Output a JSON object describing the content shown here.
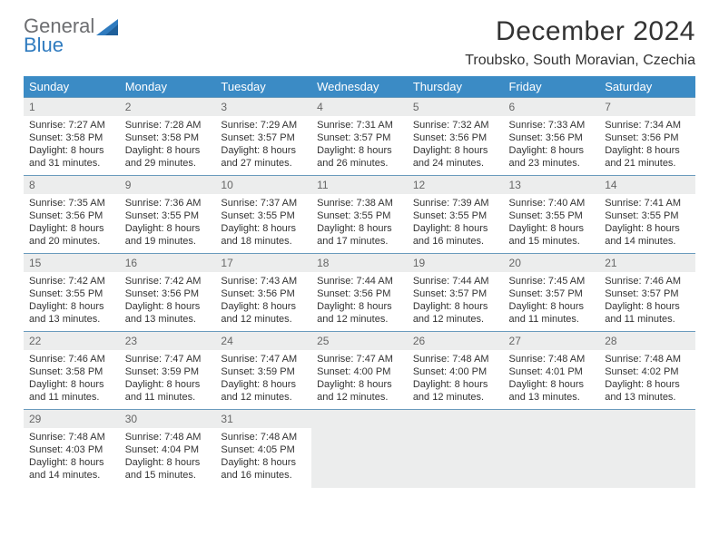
{
  "brand": {
    "part1": "General",
    "part2": "Blue"
  },
  "title": "December 2024",
  "location": "Troubsko, South Moravian, Czechia",
  "colors": {
    "header_bg": "#3b8bc5",
    "header_text": "#ffffff",
    "daynum_bg": "#eceded",
    "rule": "#3b72a5",
    "brand_gray": "#6d6e71",
    "brand_blue": "#2f7bbf"
  },
  "weekdays": [
    "Sunday",
    "Monday",
    "Tuesday",
    "Wednesday",
    "Thursday",
    "Friday",
    "Saturday"
  ],
  "weeks": [
    [
      {
        "n": "1",
        "sr": "7:27 AM",
        "ss": "3:58 PM",
        "dl": "8 hours and 31 minutes."
      },
      {
        "n": "2",
        "sr": "7:28 AM",
        "ss": "3:58 PM",
        "dl": "8 hours and 29 minutes."
      },
      {
        "n": "3",
        "sr": "7:29 AM",
        "ss": "3:57 PM",
        "dl": "8 hours and 27 minutes."
      },
      {
        "n": "4",
        "sr": "7:31 AM",
        "ss": "3:57 PM",
        "dl": "8 hours and 26 minutes."
      },
      {
        "n": "5",
        "sr": "7:32 AM",
        "ss": "3:56 PM",
        "dl": "8 hours and 24 minutes."
      },
      {
        "n": "6",
        "sr": "7:33 AM",
        "ss": "3:56 PM",
        "dl": "8 hours and 23 minutes."
      },
      {
        "n": "7",
        "sr": "7:34 AM",
        "ss": "3:56 PM",
        "dl": "8 hours and 21 minutes."
      }
    ],
    [
      {
        "n": "8",
        "sr": "7:35 AM",
        "ss": "3:56 PM",
        "dl": "8 hours and 20 minutes."
      },
      {
        "n": "9",
        "sr": "7:36 AM",
        "ss": "3:55 PM",
        "dl": "8 hours and 19 minutes."
      },
      {
        "n": "10",
        "sr": "7:37 AM",
        "ss": "3:55 PM",
        "dl": "8 hours and 18 minutes."
      },
      {
        "n": "11",
        "sr": "7:38 AM",
        "ss": "3:55 PM",
        "dl": "8 hours and 17 minutes."
      },
      {
        "n": "12",
        "sr": "7:39 AM",
        "ss": "3:55 PM",
        "dl": "8 hours and 16 minutes."
      },
      {
        "n": "13",
        "sr": "7:40 AM",
        "ss": "3:55 PM",
        "dl": "8 hours and 15 minutes."
      },
      {
        "n": "14",
        "sr": "7:41 AM",
        "ss": "3:55 PM",
        "dl": "8 hours and 14 minutes."
      }
    ],
    [
      {
        "n": "15",
        "sr": "7:42 AM",
        "ss": "3:55 PM",
        "dl": "8 hours and 13 minutes."
      },
      {
        "n": "16",
        "sr": "7:42 AM",
        "ss": "3:56 PM",
        "dl": "8 hours and 13 minutes."
      },
      {
        "n": "17",
        "sr": "7:43 AM",
        "ss": "3:56 PM",
        "dl": "8 hours and 12 minutes."
      },
      {
        "n": "18",
        "sr": "7:44 AM",
        "ss": "3:56 PM",
        "dl": "8 hours and 12 minutes."
      },
      {
        "n": "19",
        "sr": "7:44 AM",
        "ss": "3:57 PM",
        "dl": "8 hours and 12 minutes."
      },
      {
        "n": "20",
        "sr": "7:45 AM",
        "ss": "3:57 PM",
        "dl": "8 hours and 11 minutes."
      },
      {
        "n": "21",
        "sr": "7:46 AM",
        "ss": "3:57 PM",
        "dl": "8 hours and 11 minutes."
      }
    ],
    [
      {
        "n": "22",
        "sr": "7:46 AM",
        "ss": "3:58 PM",
        "dl": "8 hours and 11 minutes."
      },
      {
        "n": "23",
        "sr": "7:47 AM",
        "ss": "3:59 PM",
        "dl": "8 hours and 11 minutes."
      },
      {
        "n": "24",
        "sr": "7:47 AM",
        "ss": "3:59 PM",
        "dl": "8 hours and 12 minutes."
      },
      {
        "n": "25",
        "sr": "7:47 AM",
        "ss": "4:00 PM",
        "dl": "8 hours and 12 minutes."
      },
      {
        "n": "26",
        "sr": "7:48 AM",
        "ss": "4:00 PM",
        "dl": "8 hours and 12 minutes."
      },
      {
        "n": "27",
        "sr": "7:48 AM",
        "ss": "4:01 PM",
        "dl": "8 hours and 13 minutes."
      },
      {
        "n": "28",
        "sr": "7:48 AM",
        "ss": "4:02 PM",
        "dl": "8 hours and 13 minutes."
      }
    ],
    [
      {
        "n": "29",
        "sr": "7:48 AM",
        "ss": "4:03 PM",
        "dl": "8 hours and 14 minutes."
      },
      {
        "n": "30",
        "sr": "7:48 AM",
        "ss": "4:04 PM",
        "dl": "8 hours and 15 minutes."
      },
      {
        "n": "31",
        "sr": "7:48 AM",
        "ss": "4:05 PM",
        "dl": "8 hours and 16 minutes."
      },
      null,
      null,
      null,
      null
    ]
  ],
  "labels": {
    "sunrise": "Sunrise: ",
    "sunset": "Sunset: ",
    "daylight": "Daylight: "
  }
}
